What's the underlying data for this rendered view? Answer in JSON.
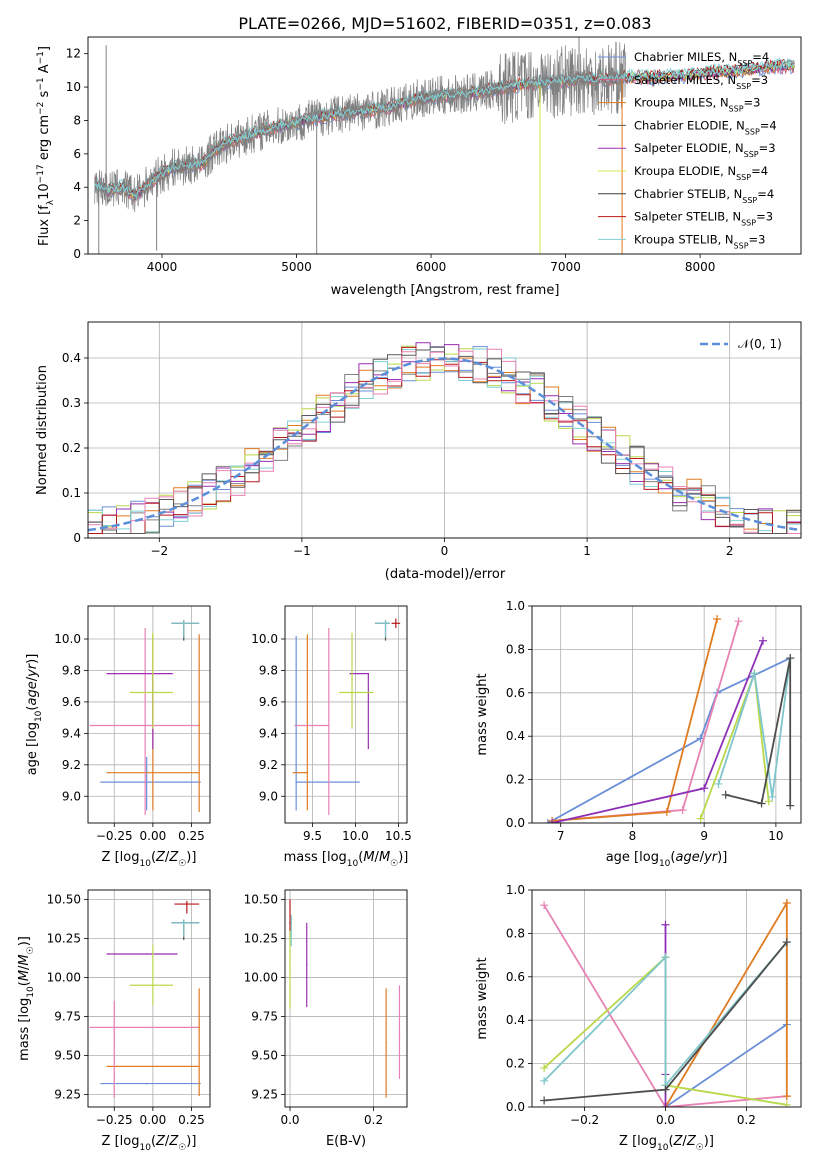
{
  "figure_title": "PLATE=0266, MJD=51602, FIBERID=0351, z=0.083",
  "colors": {
    "data": "#808080",
    "chab_miles": "#6a8fd8",
    "salp_miles": "#e05a7a",
    "krou_miles": "#e07b20",
    "chab_elodie": "#5a5a5a",
    "salp_elodie": "#9a2fb0",
    "krou_elodie": "#d4e650",
    "chab_stelib": "#404040",
    "salp_stelib": "#b81818",
    "krou_stelib": "#7fd0d6",
    "pink": "#e882b4",
    "orange": "#e07b20",
    "blue": "#6a8fd8",
    "purple": "#8e30b6",
    "lime": "#b9d84a",
    "dark": "#4d4d4d",
    "cyan": "#7fc6cc",
    "red": "#b81818",
    "normal_curve": "#5b8fd9"
  },
  "chart_data": [
    {
      "id": "spectrum",
      "type": "line",
      "xlabel": "wavelength [Angstrom, rest frame]",
      "ylabel": "Flux [f_λ 10^-17 erg cm^-2 s^-1 A^-1]",
      "xlim": [
        3450,
        8750
      ],
      "ylim": [
        0,
        13
      ],
      "xticks": [
        4000,
        5000,
        6000,
        7000,
        8000
      ],
      "yticks": [
        0,
        2,
        4,
        6,
        8,
        10,
        12
      ],
      "grid": false,
      "legend_position": "upper-right",
      "legend": [
        {
          "label": "Chabrier MILES, N",
          "sub": "SSP",
          "tail": "=4",
          "color": "#6a8fd8"
        },
        {
          "label": "Salpeter MILES, N",
          "sub": "SSP",
          "tail": "=3",
          "color": "#e05a7a"
        },
        {
          "label": "Kroupa MILES, N",
          "sub": "SSP",
          "tail": "=3",
          "color": "#e07b20"
        },
        {
          "label": "Chabrier ELODIE, N",
          "sub": "SSP",
          "tail": "=4",
          "color": "#5a5a5a"
        },
        {
          "label": "Salpeter ELODIE, N",
          "sub": "SSP",
          "tail": "=3",
          "color": "#9a2fb0"
        },
        {
          "label": "Kroupa ELODIE, N",
          "sub": "SSP",
          "tail": "=4",
          "color": "#d4e650"
        },
        {
          "label": "Chabrier STELIB, N",
          "sub": "SSP",
          "tail": "=4",
          "color": "#404040"
        },
        {
          "label": "Salpeter STELIB, N",
          "sub": "SSP",
          "tail": "=3",
          "color": "#b81818"
        },
        {
          "label": "Kroupa STELIB, N",
          "sub": "SSP",
          "tail": "=3",
          "color": "#7fd0d6"
        }
      ],
      "continuum": {
        "x": [
          3500,
          3600,
          3700,
          3800,
          3900,
          4000,
          4100,
          4200,
          4300,
          4400,
          4500,
          4700,
          4900,
          5100,
          5300,
          5500,
          5700,
          5900,
          6100,
          6300,
          6500,
          6700,
          6900,
          7100,
          7300,
          7500,
          7700,
          7900,
          8100,
          8300,
          8500,
          8700
        ],
        "y": [
          4.2,
          3.8,
          4.0,
          3.5,
          4.2,
          4.8,
          5.2,
          5.3,
          5.4,
          6.3,
          6.7,
          7.3,
          7.7,
          8.1,
          8.4,
          8.6,
          8.8,
          9.3,
          9.5,
          9.6,
          9.9,
          10.2,
          10.3,
          10.5,
          10.5,
          10.6,
          10.6,
          10.7,
          10.9,
          11.0,
          11.2,
          11.3
        ]
      },
      "spikes": [
        {
          "x": 3530,
          "y": 0,
          "series": "data"
        },
        {
          "x": 3585,
          "y": 12.5,
          "series": "data"
        },
        {
          "x": 3960,
          "y": 0.2,
          "series": "data"
        },
        {
          "x": 5150,
          "y": 0,
          "series": "data"
        },
        {
          "x": 6810,
          "y": 0,
          "series": "krou_elodie"
        },
        {
          "x": 7420,
          "y": 0,
          "series": "krou_miles"
        },
        {
          "x": 7100,
          "y": 13,
          "series": "data"
        }
      ],
      "data_end": 7450
    },
    {
      "id": "residuals",
      "type": "histogram",
      "xlabel": "(data-model)/error",
      "ylabel": "Normed distribution",
      "xlim": [
        -2.5,
        2.5
      ],
      "ylim": [
        0,
        0.48
      ],
      "xticks": [
        -2,
        -1,
        0,
        1,
        2
      ],
      "yticks": [
        0.0,
        0.1,
        0.2,
        0.3,
        0.4
      ],
      "grid": true,
      "legend_position": "upper-right",
      "legend": [
        {
          "label": "𝒩(0, 1)",
          "style": "dashed",
          "color": "#5b8fd9"
        }
      ],
      "bin_width": 0.1,
      "series_colors": [
        "#6a8fd8",
        "#e07b20",
        "#b9d84a",
        "#9a2fb0",
        "#808080",
        "#7fd0d6",
        "#b81818",
        "#e882b4",
        "#5a5a5a"
      ]
    },
    {
      "id": "age-vs-Z",
      "type": "errorbar",
      "xlabel": "Z [log10(Z/Z☉)]",
      "ylabel": "age [log10(age/yr)]",
      "xlim": [
        -0.42,
        0.37
      ],
      "ylim": [
        8.83,
        10.21
      ],
      "xticks": [
        -0.25,
        0.0,
        0.25
      ],
      "xticklabels": [
        "−0.25",
        "0.00",
        "0.25"
      ],
      "yticks": [
        9.0,
        9.2,
        9.4,
        9.6,
        9.8,
        10.0
      ],
      "yticklabels": [
        "9.0",
        "9.2",
        "9.4",
        "9.6",
        "9.8",
        "10.0"
      ],
      "grid": true,
      "points": [
        {
          "x": -0.04,
          "y": 9.09,
          "xerr": [
            0.3,
            0.35
          ],
          "yerr": [
            0.18,
            0.16
          ],
          "color": "#6a8fd8"
        },
        {
          "x": 0.0,
          "y": 9.15,
          "xerr": [
            0.3,
            0.3
          ],
          "yerr": [
            0.24,
            0.88
          ],
          "color": "#e07b20"
        },
        {
          "x": -0.05,
          "y": 9.45,
          "xerr": [
            0.36,
            0.35
          ],
          "yerr": [
            0.57,
            0.62
          ],
          "color": "#e882b4"
        },
        {
          "x": 0.0,
          "y": 9.78,
          "xerr": [
            0.3,
            0.13
          ],
          "yerr": [
            0.48,
            0.0
          ],
          "color": "#9a2fb0"
        },
        {
          "x": 0.0,
          "y": 9.66,
          "xerr": [
            0.15,
            0.13
          ],
          "yerr": [
            0.23,
            0.38
          ],
          "color": "#b9d84a"
        },
        {
          "x": 0.2,
          "y": 10.1,
          "xerr": [
            0.08,
            0.1
          ],
          "yerr": [
            0.11,
            0.02
          ],
          "color": "#4d4d4d"
        },
        {
          "x": 0.2,
          "y": 10.1,
          "xerr": [
            0.08,
            0.1
          ],
          "yerr": [
            0.09,
            0.02
          ],
          "color": "#7fc6cc"
        },
        {
          "x": 0.3,
          "y": 9.45,
          "xerr": [
            0.0,
            0.0
          ],
          "yerr": [
            0.55,
            0.58
          ],
          "color": "#e07b20"
        }
      ]
    },
    {
      "id": "age-vs-mass",
      "type": "errorbar",
      "xlabel": "mass [log10(M/M☉)]",
      "ylabel": "",
      "xlim": [
        9.18,
        10.6
      ],
      "ylim": [
        8.83,
        10.21
      ],
      "xticks": [
        9.5,
        10.0,
        10.5
      ],
      "xticklabels": [
        "9.5",
        "10.0",
        "10.5"
      ],
      "yticks": [
        9.0,
        9.2,
        9.4,
        9.6,
        9.8,
        10.0
      ],
      "yticklabels": [
        "9.0",
        "9.2",
        "9.4",
        "9.6",
        "9.8",
        "10.0"
      ],
      "grid": true,
      "points": [
        {
          "x": 9.31,
          "y": 9.09,
          "xerr": [
            0.0,
            0.74
          ],
          "yerr": [
            0.18,
            0.93
          ],
          "color": "#6a8fd8"
        },
        {
          "x": 9.44,
          "y": 9.15,
          "xerr": [
            0.17,
            0.0
          ],
          "yerr": [
            0.24,
            0.88
          ],
          "color": "#e07b20"
        },
        {
          "x": 9.69,
          "y": 9.45,
          "xerr": [
            0.4,
            0.0
          ],
          "yerr": [
            0.57,
            0.62
          ],
          "color": "#e882b4"
        },
        {
          "x": 10.15,
          "y": 9.78,
          "xerr": [
            0.22,
            0.0
          ],
          "yerr": [
            0.48,
            0.0
          ],
          "color": "#9a2fb0"
        },
        {
          "x": 9.96,
          "y": 9.66,
          "xerr": [
            0.15,
            0.25
          ],
          "yerr": [
            0.23,
            0.38
          ],
          "color": "#b9d84a"
        },
        {
          "x": 10.35,
          "y": 10.1,
          "xerr": [
            0.12,
            0.05
          ],
          "yerr": [
            0.11,
            0.02
          ],
          "color": "#4d4d4d"
        },
        {
          "x": 10.35,
          "y": 10.1,
          "xerr": [
            0.12,
            0.05
          ],
          "yerr": [
            0.09,
            0.02
          ],
          "color": "#7fc6cc"
        },
        {
          "x": 10.47,
          "y": 10.1,
          "xerr": [
            0.05,
            0.05
          ],
          "yerr": [
            0.03,
            0.03
          ],
          "color": "#b81818"
        }
      ]
    },
    {
      "id": "weight-vs-age",
      "type": "line",
      "xlabel": "age [log10(age/yr)]",
      "ylabel": "mass weight",
      "xlim": [
        6.6,
        10.35
      ],
      "ylim": [
        0,
        1.0
      ],
      "xticks": [
        7,
        8,
        9,
        10
      ],
      "xticklabels": [
        "7",
        "8",
        "9",
        "10"
      ],
      "yticks": [
        0.0,
        0.2,
        0.4,
        0.6,
        0.8,
        1.0
      ],
      "yticklabels": [
        "0.0",
        "0.2",
        "0.4",
        "0.6",
        "0.8",
        "1.0"
      ],
      "grid": true,
      "series": [
        {
          "color": "#6a8fd8",
          "x": [
            6.82,
            8.95,
            9.18,
            10.2
          ],
          "y": [
            0.0,
            0.39,
            0.6,
            0.76
          ]
        },
        {
          "color": "#e882b4",
          "x": [
            6.88,
            8.7,
            9.48
          ],
          "y": [
            0.01,
            0.06,
            0.93
          ]
        },
        {
          "color": "#e07b20",
          "x": [
            6.88,
            8.48,
            9.18
          ],
          "y": [
            0.01,
            0.05,
            0.94
          ]
        },
        {
          "color": "#8e30b6",
          "x": [
            6.88,
            9.0,
            9.82
          ],
          "y": [
            0.0,
            0.16,
            0.84
          ]
        },
        {
          "color": "#b9d84a",
          "x": [
            8.95,
            9.7,
            9.9
          ],
          "y": [
            0.02,
            0.69,
            0.1
          ]
        },
        {
          "color": "#7fc6cc",
          "x": [
            9.2,
            9.7,
            9.95,
            10.2
          ],
          "y": [
            0.18,
            0.69,
            0.12,
            0.76
          ]
        },
        {
          "color": "#4d4d4d",
          "x": [
            9.3,
            9.8,
            10.2,
            10.2
          ],
          "y": [
            0.13,
            0.09,
            0.76,
            0.08
          ]
        }
      ]
    },
    {
      "id": "mass-vs-Z",
      "type": "errorbar",
      "xlabel": "Z [log10(Z/Z☉)]",
      "ylabel": "mass [log10(M/M☉)]",
      "xlim": [
        -0.42,
        0.37
      ],
      "ylim": [
        9.17,
        10.56
      ],
      "xticks": [
        -0.25,
        0.0,
        0.25
      ],
      "xticklabels": [
        "−0.25",
        "0.00",
        "0.25"
      ],
      "yticks": [
        9.25,
        9.5,
        9.75,
        10.0,
        10.25,
        10.5
      ],
      "yticklabels": [
        "9.25",
        "9.50",
        "9.75",
        "10.00",
        "10.25",
        "10.50"
      ],
      "grid": true,
      "points": [
        {
          "x": -0.04,
          "y": 9.32,
          "xerr": [
            0.3,
            0.35
          ],
          "yerr": [
            0.0,
            0.0
          ],
          "color": "#6a8fd8"
        },
        {
          "x": 0.0,
          "y": 9.43,
          "xerr": [
            0.3,
            0.3
          ],
          "yerr": [
            0.0,
            0.0
          ],
          "color": "#e07b20"
        },
        {
          "x": -0.05,
          "y": 9.68,
          "xerr": [
            0.36,
            0.35
          ],
          "yerr": [
            0.0,
            0.0
          ],
          "color": "#e882b4"
        },
        {
          "x": -0.04,
          "y": 10.15,
          "xerr": [
            0.26,
            0.2
          ],
          "yerr": [
            0.0,
            0.0
          ],
          "color": "#9a2fb0"
        },
        {
          "x": 0.0,
          "y": 9.95,
          "xerr": [
            0.15,
            0.13
          ],
          "yerr": [
            0.13,
            0.26
          ],
          "color": "#b9d84a"
        },
        {
          "x": 0.2,
          "y": 10.35,
          "xerr": [
            0.08,
            0.1
          ],
          "yerr": [
            0.11,
            0.02
          ],
          "color": "#4d4d4d"
        },
        {
          "x": 0.2,
          "y": 10.35,
          "xerr": [
            0.08,
            0.1
          ],
          "yerr": [
            0.09,
            0.02
          ],
          "color": "#7fc6cc"
        },
        {
          "x": 0.22,
          "y": 10.47,
          "xerr": [
            0.08,
            0.08
          ],
          "yerr": [
            0.06,
            0.02
          ],
          "color": "#b81818"
        },
        {
          "x": 0.3,
          "y": 9.68,
          "xerr": [
            0.0,
            0.0
          ],
          "yerr": [
            0.44,
            0.25
          ],
          "color": "#e07b20"
        },
        {
          "x": -0.25,
          "y": 9.6,
          "xerr": [
            0.0,
            0.0
          ],
          "yerr": [
            0.37,
            0.25
          ],
          "color": "#e882b4"
        }
      ]
    },
    {
      "id": "mass-vs-ebv",
      "type": "errorbar",
      "xlabel": "E(B-V)",
      "ylabel": "",
      "xlim": [
        -0.012,
        0.28
      ],
      "ylim": [
        9.17,
        10.56
      ],
      "xticks": [
        0.0,
        0.2
      ],
      "xticklabels": [
        "0.0",
        "0.2"
      ],
      "yticks": [
        9.25,
        9.5,
        9.75,
        10.0,
        10.25,
        10.5
      ],
      "yticklabels": [
        "9.25",
        "9.50",
        "9.75",
        "10.00",
        "10.25",
        "10.50"
      ],
      "grid": true,
      "points": [
        {
          "x": 0.0,
          "y": 10.35,
          "xerr": [
            0.0,
            0.0
          ],
          "yerr": [
            0.1,
            0.15
          ],
          "color": "#b81818"
        },
        {
          "x": 0.0,
          "y": 10.1,
          "xerr": [
            0.0,
            0.0
          ],
          "yerr": [
            0.3,
            0.2
          ],
          "color": "#b9d84a"
        },
        {
          "x": 0.003,
          "y": 10.3,
          "xerr": [
            0.0,
            0.0
          ],
          "yerr": [
            0.1,
            0.1
          ],
          "color": "#7fc6cc"
        },
        {
          "x": 0.04,
          "y": 10.08,
          "xerr": [
            0.0,
            0.0
          ],
          "yerr": [
            0.27,
            0.27
          ],
          "color": "#9a2fb0"
        },
        {
          "x": 0.23,
          "y": 9.58,
          "xerr": [
            0.0,
            0.0
          ],
          "yerr": [
            0.35,
            0.35
          ],
          "color": "#e07b20"
        },
        {
          "x": 0.262,
          "y": 9.65,
          "xerr": [
            0.0,
            0.0
          ],
          "yerr": [
            0.3,
            0.3
          ],
          "color": "#e882b4"
        }
      ]
    },
    {
      "id": "weight-vs-Z",
      "type": "line",
      "xlabel": "Z [log10(Z/Z☉)]",
      "ylabel": "mass weight",
      "xlim": [
        -0.33,
        0.335
      ],
      "ylim": [
        0,
        1.0
      ],
      "xticks": [
        -0.2,
        0.0,
        0.2
      ],
      "xticklabels": [
        "−0.2",
        "0.0",
        "0.2"
      ],
      "yticks": [
        0.0,
        0.2,
        0.4,
        0.6,
        0.8,
        1.0
      ],
      "yticklabels": [
        "0.0",
        "0.2",
        "0.4",
        "0.6",
        "0.8",
        "1.0"
      ],
      "grid": true,
      "series": [
        {
          "color": "#6a8fd8",
          "x": [
            0.0,
            0.3,
            0.3
          ],
          "y": [
            0.0,
            0.38,
            0.76
          ]
        },
        {
          "color": "#e882b4",
          "x": [
            -0.3,
            0.0,
            0.3
          ],
          "y": [
            0.93,
            0.0,
            0.05
          ]
        },
        {
          "color": "#e07b20",
          "x": [
            0.0,
            0.3,
            0.3
          ],
          "y": [
            0.0,
            0.94,
            0.05
          ]
        },
        {
          "color": "#8e30b6",
          "x": [
            0.0,
            0.0,
            0.0
          ],
          "y": [
            0.84,
            0.15,
            0.0
          ]
        },
        {
          "color": "#b9d84a",
          "x": [
            -0.3,
            0.0,
            0.0,
            0.3
          ],
          "y": [
            0.18,
            0.69,
            0.1,
            0.01
          ]
        },
        {
          "color": "#7fc6cc",
          "x": [
            -0.3,
            0.0,
            0.0,
            0.3
          ],
          "y": [
            0.12,
            0.69,
            0.1,
            0.76
          ]
        },
        {
          "color": "#4d4d4d",
          "x": [
            -0.3,
            0.0,
            0.3
          ],
          "y": [
            0.03,
            0.08,
            0.76
          ]
        }
      ]
    }
  ]
}
